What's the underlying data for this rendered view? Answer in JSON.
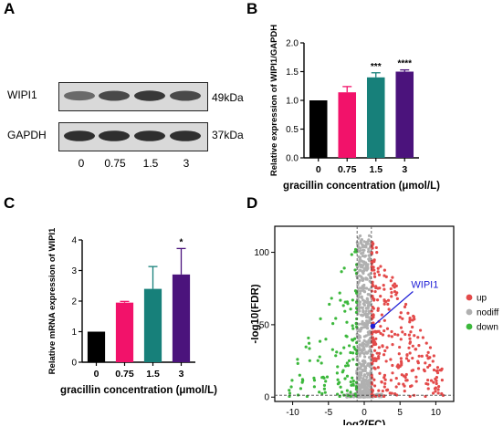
{
  "panels": {
    "a": "A",
    "b": "B",
    "c": "C",
    "d": "D"
  },
  "blot": {
    "proteins": [
      "WIPI1",
      "GAPDH"
    ],
    "sizes": [
      "49kDa",
      "37kDa"
    ],
    "lanes": [
      "0",
      "0.75",
      "1.5",
      "3"
    ],
    "band_intensity": {
      "WIPI1": [
        0.55,
        0.75,
        0.85,
        0.75
      ],
      "GAPDH": [
        0.9,
        0.9,
        0.9,
        0.9
      ]
    }
  },
  "chart_data": [
    {
      "panel": "B",
      "type": "bar",
      "categories": [
        "0",
        "0.75",
        "1.5",
        "3"
      ],
      "values": [
        1.0,
        1.14,
        1.4,
        1.5
      ],
      "errors": [
        0.0,
        0.1,
        0.08,
        0.03
      ],
      "significance": [
        "",
        "",
        "***",
        "****"
      ],
      "colors": [
        "#000000",
        "#f2126a",
        "#17807a",
        "#4b137c"
      ],
      "ylabel": "Relative expression of  WIPI1/GAPDH",
      "xlabel": "gracillin concentration (μmol/L)",
      "ylim": [
        0,
        2.0
      ],
      "yticks": [
        "0.0",
        "0.5",
        "1.0",
        "1.5",
        "2.0"
      ]
    },
    {
      "panel": "C",
      "type": "bar",
      "categories": [
        "0",
        "0.75",
        "1.5",
        "3"
      ],
      "values": [
        1.0,
        1.95,
        2.4,
        2.87
      ],
      "errors": [
        0.0,
        0.04,
        0.73,
        0.85
      ],
      "significance": [
        "",
        "",
        "",
        "*"
      ],
      "colors": [
        "#000000",
        "#f2126a",
        "#17807a",
        "#4b137c"
      ],
      "ylabel": "Relative mRNA expression of WIPI1",
      "xlabel": "gracillin concentration (μmol/L)",
      "ylim": [
        0,
        4
      ],
      "yticks": [
        "0",
        "1",
        "2",
        "3",
        "4"
      ]
    },
    {
      "panel": "D",
      "type": "scatter",
      "xlabel": "log2(FC)",
      "ylabel": "-log10(FDR)",
      "xlim": [
        -12.5,
        12.5
      ],
      "ylim": [
        -3,
        118
      ],
      "xticks": [
        "-10",
        "-5",
        "0",
        "5",
        "10"
      ],
      "yticks": [
        "0",
        "50",
        "100"
      ],
      "legend": {
        "position": "right",
        "entries": [
          {
            "name": "up",
            "color": "#e34a4a"
          },
          {
            "name": "nodiff",
            "color": "#b0b0b0"
          },
          {
            "name": "down",
            "color": "#3cb83c"
          }
        ]
      },
      "highlight": {
        "label": "WIPI1",
        "x": 1.2,
        "y": 49,
        "color": "#1f1fd6"
      },
      "threshold_lines": {
        "x": [
          -1,
          1
        ],
        "y": 1.3
      }
    }
  ]
}
